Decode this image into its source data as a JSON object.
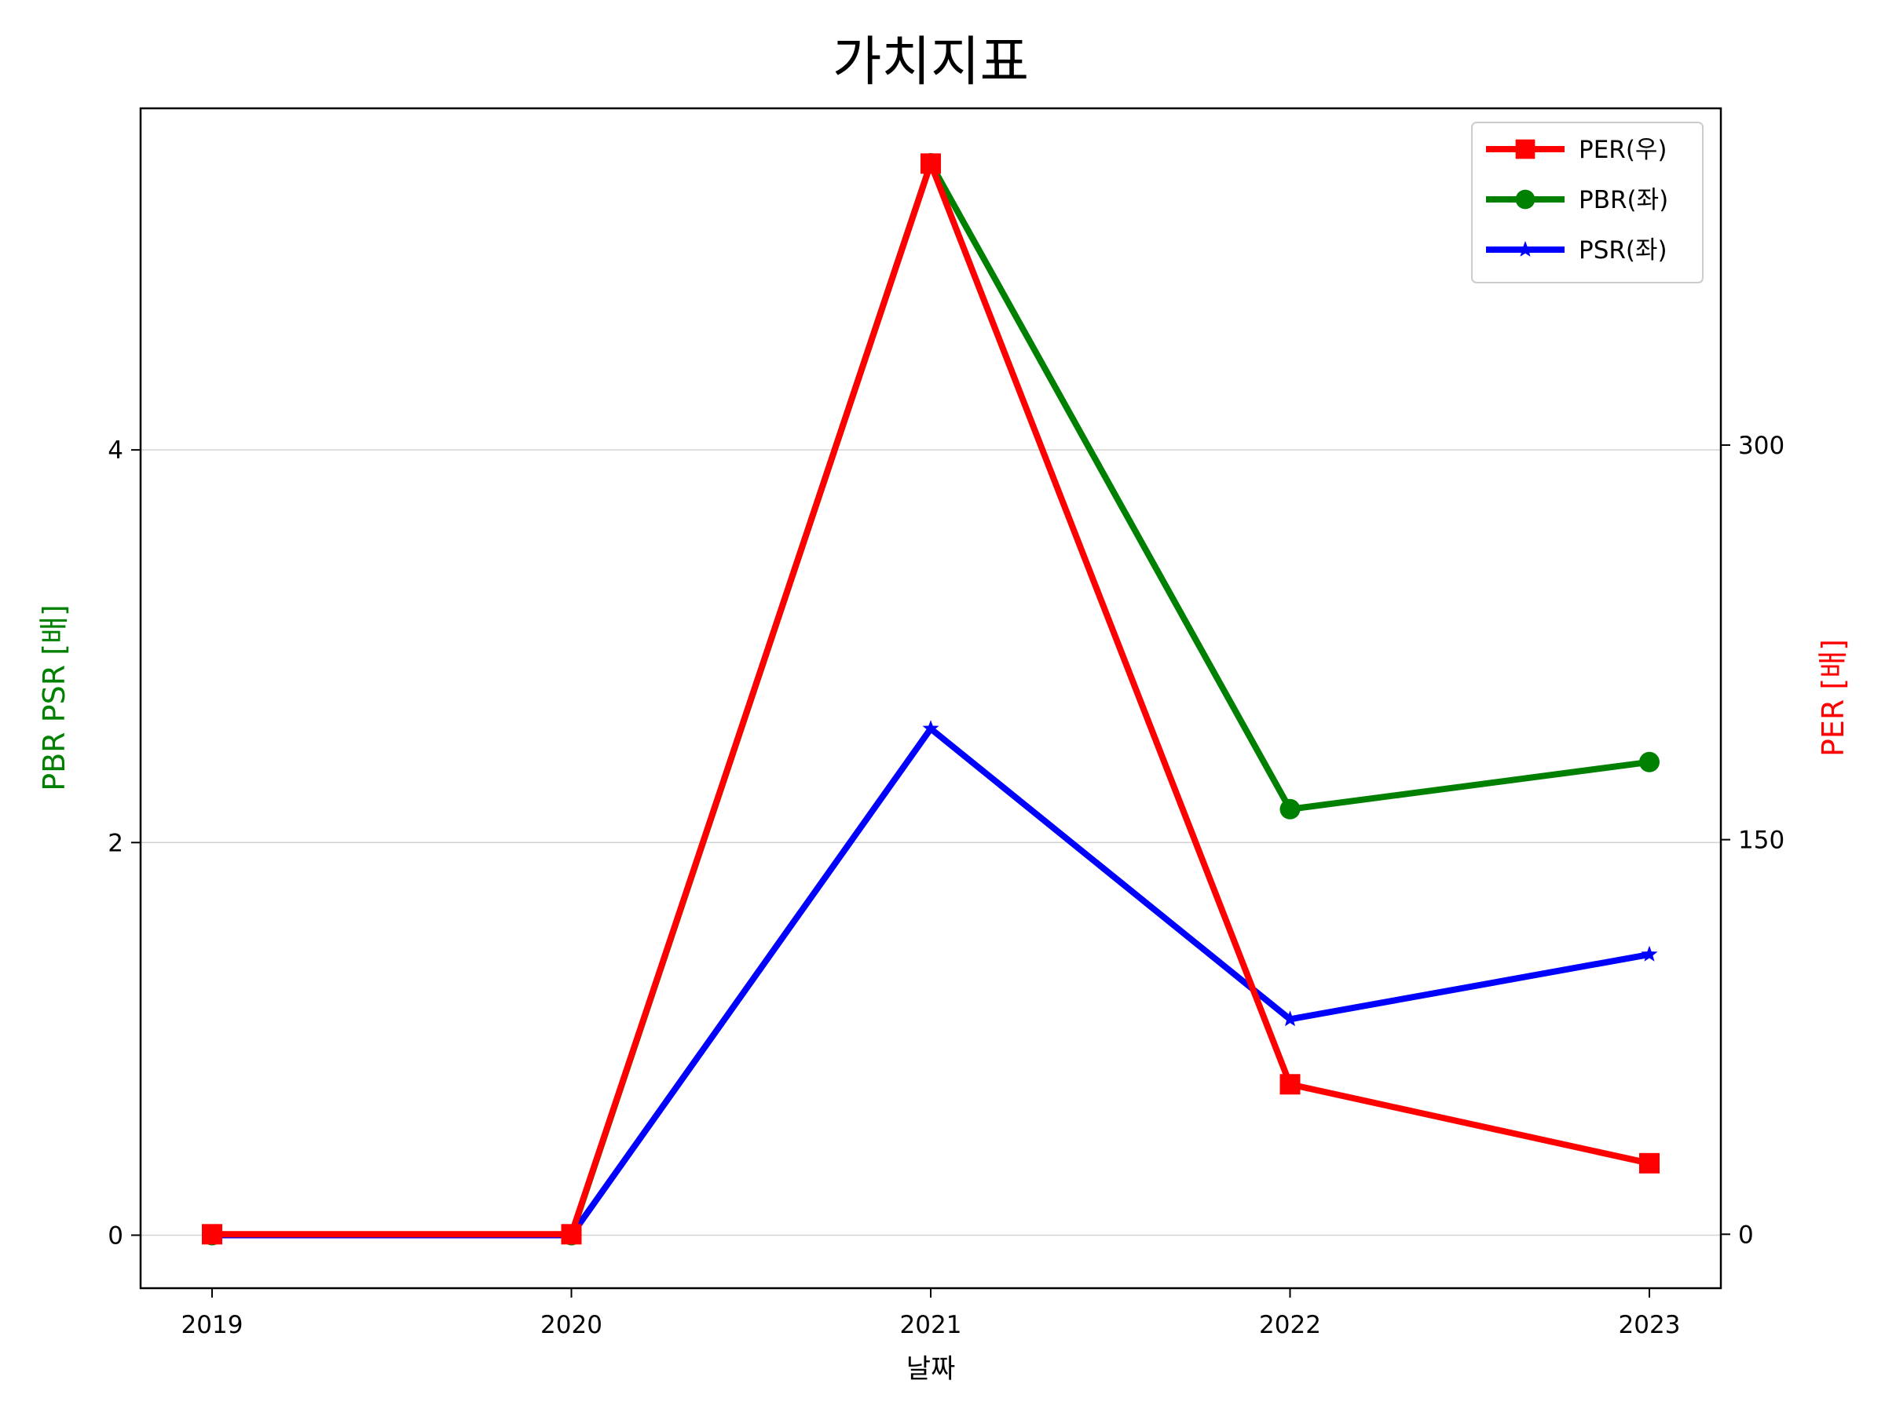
{
  "chart_data": {
    "type": "line",
    "title": "가치지표",
    "xlabel": "날짜",
    "ylabel_left": "PBR PSR [배]",
    "ylabel_right": "PER [배]",
    "ylabel_left_color": "#008000",
    "ylabel_right_color": "#ff0000",
    "categories": [
      "2019",
      "2020",
      "2021",
      "2022",
      "2023"
    ],
    "y_left": {
      "lim": [
        -0.27,
        5.74
      ],
      "ticks": [
        0,
        2,
        4
      ],
      "tick_labels": [
        "0",
        "2",
        "4"
      ]
    },
    "y_right": {
      "lim": [
        -20.5,
        428
      ],
      "ticks": [
        0,
        150,
        300
      ],
      "tick_labels": [
        "0",
        "150",
        "300"
      ]
    },
    "grid": "horizontal",
    "legend_position": "upper right",
    "series": [
      {
        "name": "PER(우)",
        "axis": "right",
        "color": "#ff0000",
        "marker": "square",
        "values": [
          0,
          0,
          407,
          57,
          27
        ]
      },
      {
        "name": "PBR(좌)",
        "axis": "left",
        "color": "#008000",
        "marker": "circle",
        "values": [
          0,
          0,
          5.46,
          2.17,
          2.41
        ]
      },
      {
        "name": "PSR(좌)",
        "axis": "left",
        "color": "#0000ff",
        "marker": "star",
        "values": [
          0,
          0,
          2.58,
          1.1,
          1.43
        ]
      }
    ]
  }
}
